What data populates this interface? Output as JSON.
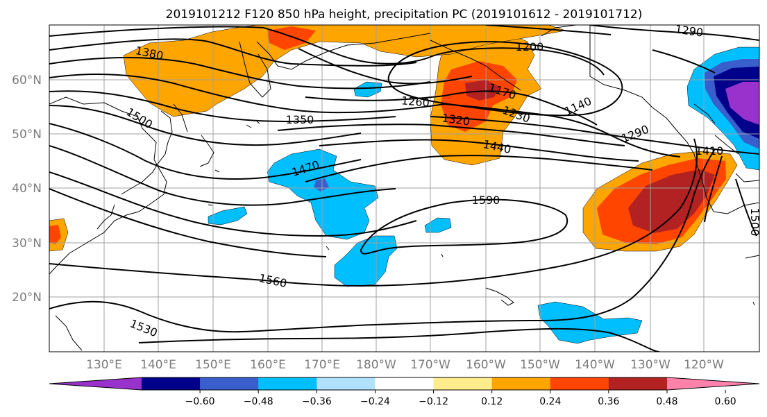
{
  "title": "2019101212 F120 850 hPa height, precipitation PC (2019101612 - 2019101712)",
  "lat_ticks": [
    "60°N",
    "50°N",
    "40°N",
    "30°N",
    "20°N"
  ],
  "lon_ticks": [
    "130°E",
    "140°E",
    "150°E",
    "160°E",
    "170°E",
    "180°W",
    "170°W",
    "160°W",
    "150°W",
    "140°W",
    "130°W",
    "120°W"
  ],
  "contour_labels": [
    "1380",
    "1500",
    "1350",
    "1470",
    "1260",
    "1320",
    "1200",
    "1170",
    "1230",
    "1140",
    "1440",
    "1290",
    "1290",
    "1410",
    "1590",
    "1560",
    "1530",
    "1500"
  ],
  "colorbar": {
    "colors": [
      "#9932cc",
      "#00008b",
      "#3a5fcd",
      "#00bfff",
      "#b0e2ff",
      "#ffffff",
      "#ffec8b",
      "#ffa500",
      "#ff4500",
      "#b22222",
      "#ff82ab"
    ],
    "tick_labels": [
      "−0.60",
      "−0.48",
      "−0.36",
      "−0.24",
      "−0.12",
      "0.12",
      "0.24",
      "0.36",
      "0.48",
      "0.60"
    ]
  }
}
